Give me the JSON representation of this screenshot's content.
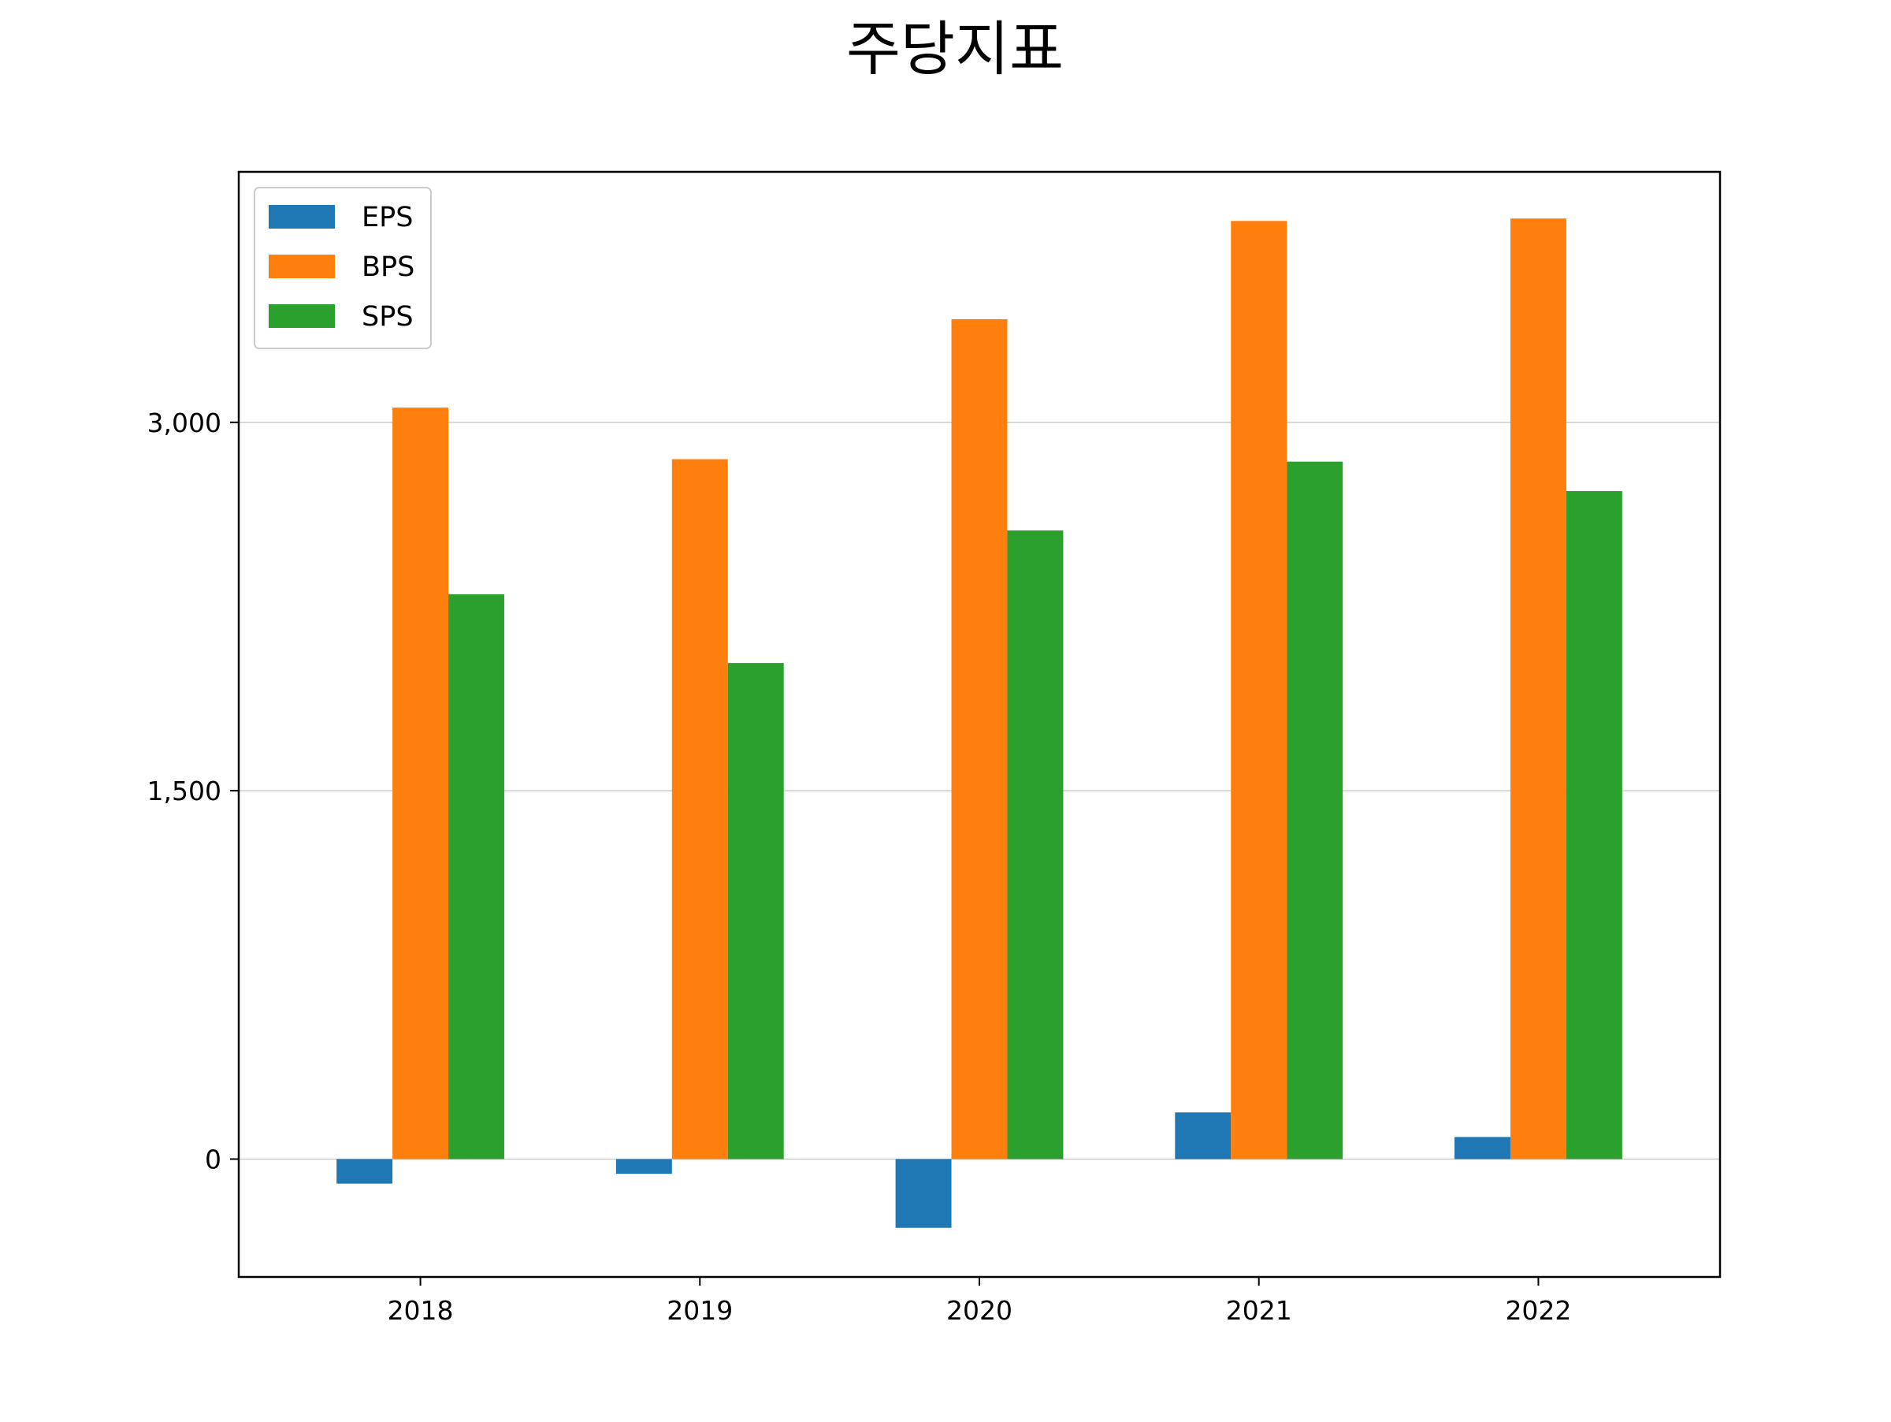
{
  "chart_data": {
    "type": "bar",
    "title": "주당지표",
    "xlabel": "",
    "ylabel": "",
    "categories": [
      "2018",
      "2019",
      "2020",
      "2021",
      "2022"
    ],
    "series": [
      {
        "name": "EPS",
        "color": "#1f77b4",
        "values": [
          -100,
          -60,
          -280,
          190,
          90
        ]
      },
      {
        "name": "BPS",
        "color": "#ff7f0e",
        "values": [
          3060,
          2850,
          3420,
          3820,
          3830
        ]
      },
      {
        "name": "SPS",
        "color": "#2ca02c",
        "values": [
          2300,
          2020,
          2560,
          2840,
          2720
        ]
      }
    ],
    "ylim": [
      -480,
      4020
    ],
    "yticks": [
      0,
      1500,
      3000
    ],
    "ytick_labels": [
      "0",
      "1,500",
      "3,000"
    ],
    "grid": {
      "y": true,
      "x": false
    },
    "legend": "top-left"
  }
}
